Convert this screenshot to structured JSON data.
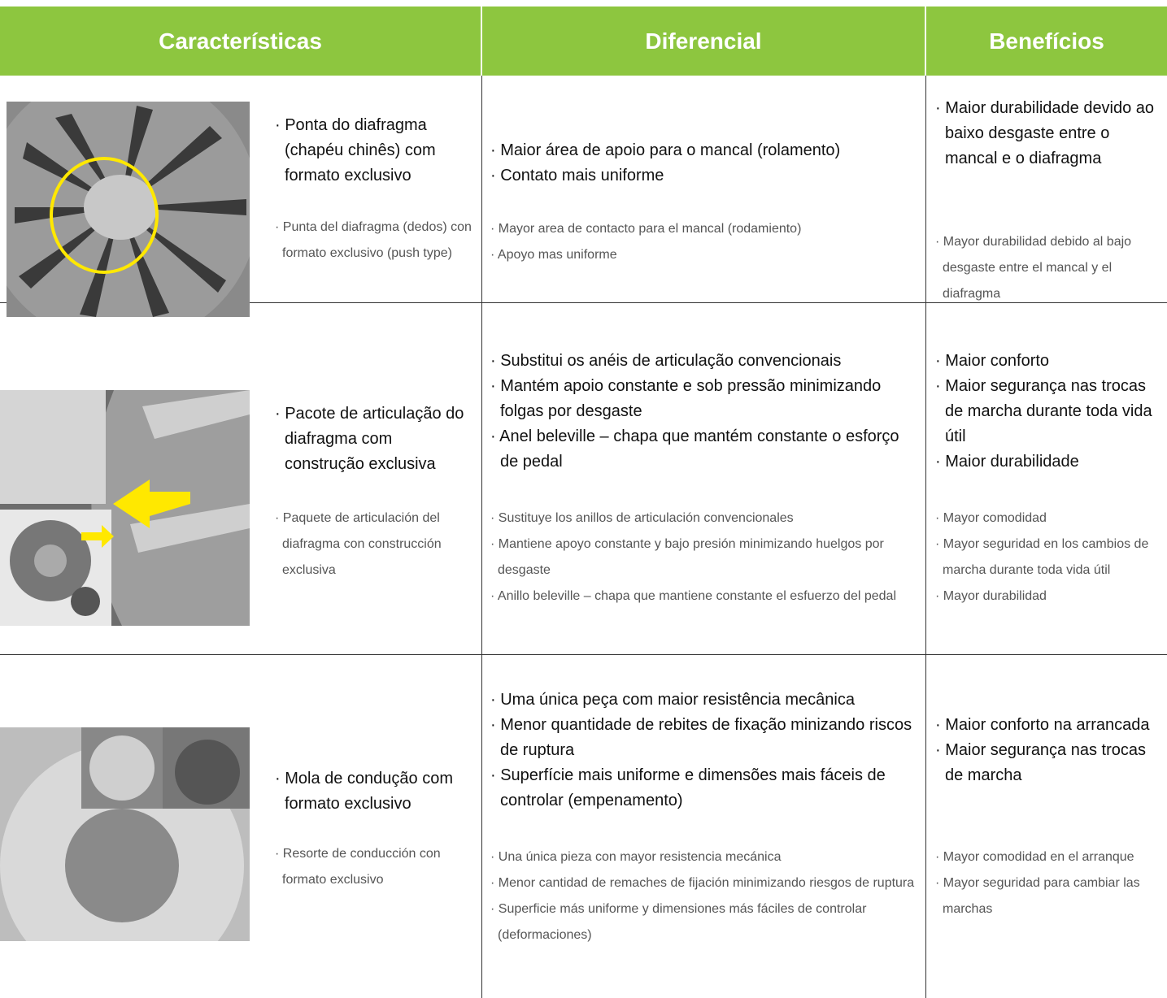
{
  "header": {
    "columns": [
      "Características",
      "Diferencial",
      "Benefícios"
    ]
  },
  "table": {
    "rows": [
      {
        "features": {
          "pt": [
            "· Ponta do diafragma (chapéu chinês) com formato exclusivo"
          ],
          "es": [
            "· Punta del diafragma (dedos) con formato exclusivo (push type)"
          ]
        },
        "differential": {
          "pt": [
            "· Maior área de apoio para o mancal (rolamento)",
            "· Contato mais uniforme"
          ],
          "es": [
            "· Mayor area de contacto para el mancal (rodamiento)",
            "· Apoyo mas uniforme"
          ]
        },
        "benefits": {
          "pt": [
            "· Maior durabilidade devido ao baixo desgaste entre o mancal e o diafragma"
          ],
          "es": [
            "· Mayor durabilidad debido al bajo desgaste entre el mancal y el diafragma"
          ]
        }
      },
      {
        "features": {
          "pt": [
            "· Pacote de articulação do diafragma com construção exclusiva"
          ],
          "es": [
            "· Paquete de articulación del diafragma con construcción exclusiva"
          ]
        },
        "differential": {
          "pt": [
            "· Substitui os anéis de articulação convencionais",
            "· Mantém apoio constante e sob pressão minimizando folgas por desgaste",
            "· Anel beleville – chapa que mantém constante o esforço de pedal"
          ],
          "es": [
            "· Sustituye los anillos de articulación convencionales",
            "· Mantiene apoyo constante y bajo presión minimizando huelgos por desgaste",
            "· Anillo beleville – chapa que mantiene constante el esfuerzo del pedal"
          ]
        },
        "benefits": {
          "pt": [
            "· Maior conforto",
            "· Maior segurança nas trocas de marcha durante toda vida útil",
            "· Maior durabilidade"
          ],
          "es": [
            "· Mayor comodidad",
            "· Mayor seguridad en los cambios de marcha durante toda vida útil",
            "· Mayor durabilidad"
          ]
        }
      },
      {
        "features": {
          "pt": [
            "· Mola de condução com formato exclusivo"
          ],
          "es": [
            "· Resorte de conducción con formato exclusivo"
          ]
        },
        "differential": {
          "pt": [
            "· Uma única peça com maior resistência mecânica",
            "· Menor quantidade de rebites de fixação minizando riscos de ruptura",
            "· Superfície mais uniforme e dimensões mais fáceis de controlar (empenamento)"
          ],
          "es": [
            "· Una única pieza con mayor resistencia mecánica",
            "· Menor cantidad de remaches de fijación minimizando riesgos de ruptura",
            "· Superficie más uniforme y dimensiones más fáciles de controlar (deformaciones)"
          ]
        },
        "benefits": {
          "pt": [
            "· Maior conforto na arrancada",
            "· Maior segurança nas trocas de marcha"
          ],
          "es": [
            "· Mayor comodidad en el arranque",
            "· Mayor seguridad para cambiar las marchas"
          ]
        }
      }
    ]
  }
}
